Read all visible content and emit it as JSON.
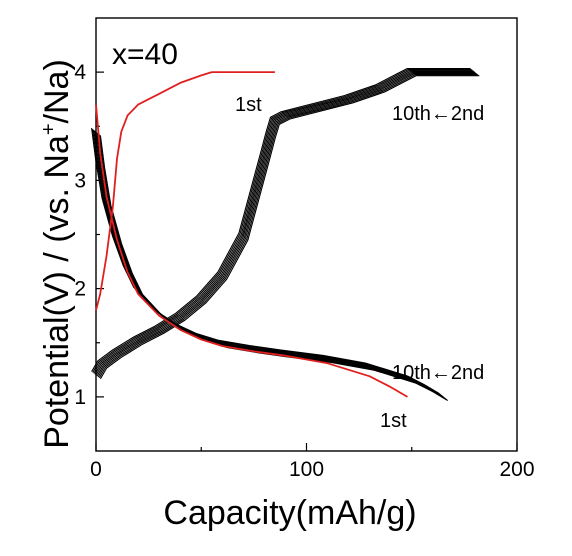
{
  "chart_data": {
    "type": "line",
    "title": "",
    "panel_label": "x=40",
    "xlabel": "Capacity(mAh/g)",
    "ylabel_parts": {
      "before": "Potential(V) / (vs. Na",
      "sup": "+",
      "after": "/Na)"
    },
    "xlim": [
      0,
      200
    ],
    "ylim": [
      0.5,
      4.5
    ],
    "xticks": [
      "0",
      "100",
      "200"
    ],
    "yticks": [
      "1",
      "2",
      "3",
      "4"
    ],
    "grid": false,
    "legend": "none",
    "colors": {
      "first_cycle": "#e0201e",
      "later_cycles": "#000000"
    },
    "annotations": {
      "charge_1st": "1st",
      "charge_2nd_10th": "10th←2nd",
      "discharge_2nd_10th": "10th←2nd",
      "discharge_1st": "1st"
    },
    "series": [
      {
        "cycle": "1st",
        "step": "discharge",
        "color_key": "first_cycle",
        "x": [
          0,
          2,
          5,
          10,
          15,
          20,
          30,
          40,
          50,
          60,
          75,
          90,
          110,
          130,
          140,
          148
        ],
        "y": [
          3.7,
          3.25,
          2.85,
          2.45,
          2.15,
          1.95,
          1.75,
          1.62,
          1.53,
          1.47,
          1.42,
          1.38,
          1.31,
          1.19,
          1.09,
          1.0
        ]
      },
      {
        "cycle": "1st",
        "step": "charge",
        "color_key": "first_cycle",
        "x": [
          0,
          2,
          5,
          8,
          10,
          12,
          15,
          20,
          30,
          40,
          50,
          55,
          85
        ],
        "y": [
          1.8,
          1.95,
          2.3,
          2.75,
          3.2,
          3.45,
          3.6,
          3.7,
          3.8,
          3.9,
          3.97,
          4.0,
          4.0
        ]
      },
      {
        "cycle": "2nd-10th",
        "step": "discharge",
        "color_key": "later_cycles",
        "x": [
          0,
          2,
          5,
          10,
          15,
          20,
          30,
          40,
          50,
          60,
          75,
          90,
          110,
          130,
          150,
          158,
          165
        ],
        "y": [
          3.45,
          3.15,
          2.8,
          2.45,
          2.18,
          1.98,
          1.77,
          1.64,
          1.55,
          1.49,
          1.44,
          1.4,
          1.35,
          1.28,
          1.16,
          1.08,
          1.0
        ]
      },
      {
        "cycle": "2nd-10th",
        "step": "charge",
        "color_key": "later_cycles",
        "x": [
          0,
          3,
          10,
          20,
          30,
          40,
          50,
          60,
          70,
          80,
          83,
          85,
          90,
          100,
          110,
          120,
          135,
          145,
          150,
          180
        ],
        "y": [
          1.2,
          1.3,
          1.4,
          1.52,
          1.62,
          1.74,
          1.9,
          2.12,
          2.48,
          3.2,
          3.42,
          3.55,
          3.6,
          3.65,
          3.7,
          3.75,
          3.85,
          3.95,
          4.0,
          4.0
        ]
      }
    ]
  }
}
